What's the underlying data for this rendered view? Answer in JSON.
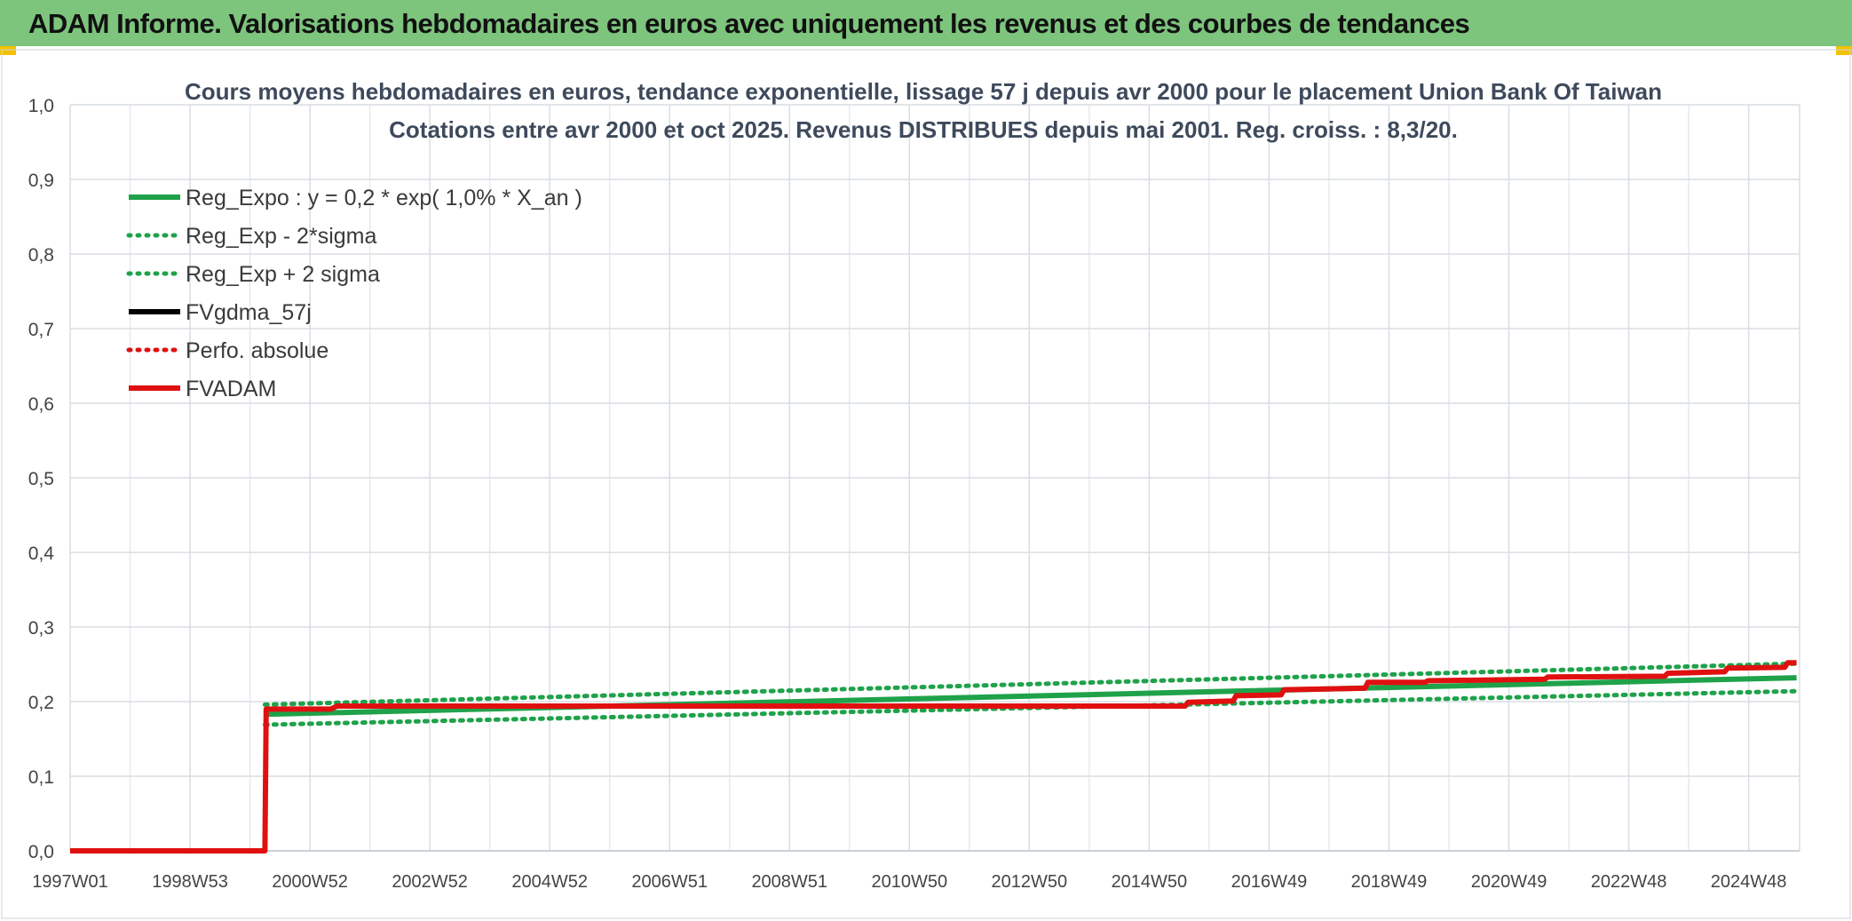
{
  "header": {
    "title": "ADAM Informe. Valorisations hebdomadaires en euros avec uniquement les revenus et des courbes de tendances"
  },
  "chart_data": {
    "type": "line",
    "title_line1": "Cours moyens hebdomadaires en euros, tendance exponentielle, lissage 57 j depuis avr 2000 pour le placement Union Bank Of Taiwan",
    "title_line2": "Cotations entre avr 2000 et oct 2025. Revenus DISTRIBUES depuis mai 2001. Reg. croiss. : 8,3/20.",
    "x_tick_labels": [
      "1997W01",
      "1998W53",
      "2000W52",
      "2002W52",
      "2004W52",
      "2006W51",
      "2008W51",
      "2010W50",
      "2012W50",
      "2014W50",
      "2016W49",
      "2018W49",
      "2020W49",
      "2022W48",
      "2024W48"
    ],
    "x_tick_years": [
      1997.0,
      1999.0,
      2001.0,
      2003.0,
      2005.0,
      2007.0,
      2009.0,
      2011.0,
      2013.0,
      2015.0,
      2017.0,
      2019.0,
      2021.0,
      2023.0,
      2025.0
    ],
    "xlim": [
      1997.0,
      2025.85
    ],
    "ylim": [
      0,
      1.0
    ],
    "y_tick_labels": [
      "0,0",
      "0,1",
      "0,2",
      "0,3",
      "0,4",
      "0,5",
      "0,6",
      "0,7",
      "0,8",
      "0,9",
      "1,0"
    ],
    "y_ticks": [
      0,
      0.1,
      0.2,
      0.3,
      0.4,
      0.5,
      0.6,
      0.7,
      0.8,
      0.9,
      1.0
    ],
    "grid": true,
    "legend_placement": "top-left",
    "series": [
      {
        "name": "Reg_Expo : y = 0,2 * exp( 1,0% *  X_an )",
        "color": "#1fa24a",
        "style": "solid",
        "x": [
          2000.25,
          2025.8
        ],
        "y": [
          0.183,
          0.232
        ]
      },
      {
        "name": "Reg_Exp - 2*sigma",
        "color": "#1fa24a",
        "style": "dotted",
        "x": [
          2000.25,
          2025.8
        ],
        "y": [
          0.169,
          0.214
        ]
      },
      {
        "name": "Reg_Exp + 2 sigma",
        "color": "#1fa24a",
        "style": "dotted",
        "x": [
          2000.25,
          2025.8
        ],
        "y": [
          0.196,
          0.251
        ]
      },
      {
        "name": "FVgdma_57j",
        "color": "#000000",
        "style": "solid",
        "x": [],
        "y": []
      },
      {
        "name": "Perfo. absolue",
        "color": "#e01010",
        "style": "dotted",
        "x": [],
        "y": []
      },
      {
        "name": "FVADAM",
        "color": "#e01010",
        "style": "solid",
        "x": [
          1997.0,
          2000.25,
          2000.27,
          2001.35,
          2001.45,
          2015.6,
          2015.65,
          2016.4,
          2016.45,
          2017.2,
          2017.25,
          2018.6,
          2018.65,
          2019.6,
          2019.65,
          2021.6,
          2021.65,
          2023.6,
          2023.65,
          2024.6,
          2024.65,
          2025.6,
          2025.65,
          2025.8
        ],
        "y": [
          0.0,
          0.0,
          0.19,
          0.19,
          0.194,
          0.194,
          0.199,
          0.201,
          0.208,
          0.209,
          0.216,
          0.218,
          0.226,
          0.226,
          0.228,
          0.23,
          0.233,
          0.234,
          0.238,
          0.24,
          0.245,
          0.246,
          0.252,
          0.252
        ]
      }
    ]
  }
}
